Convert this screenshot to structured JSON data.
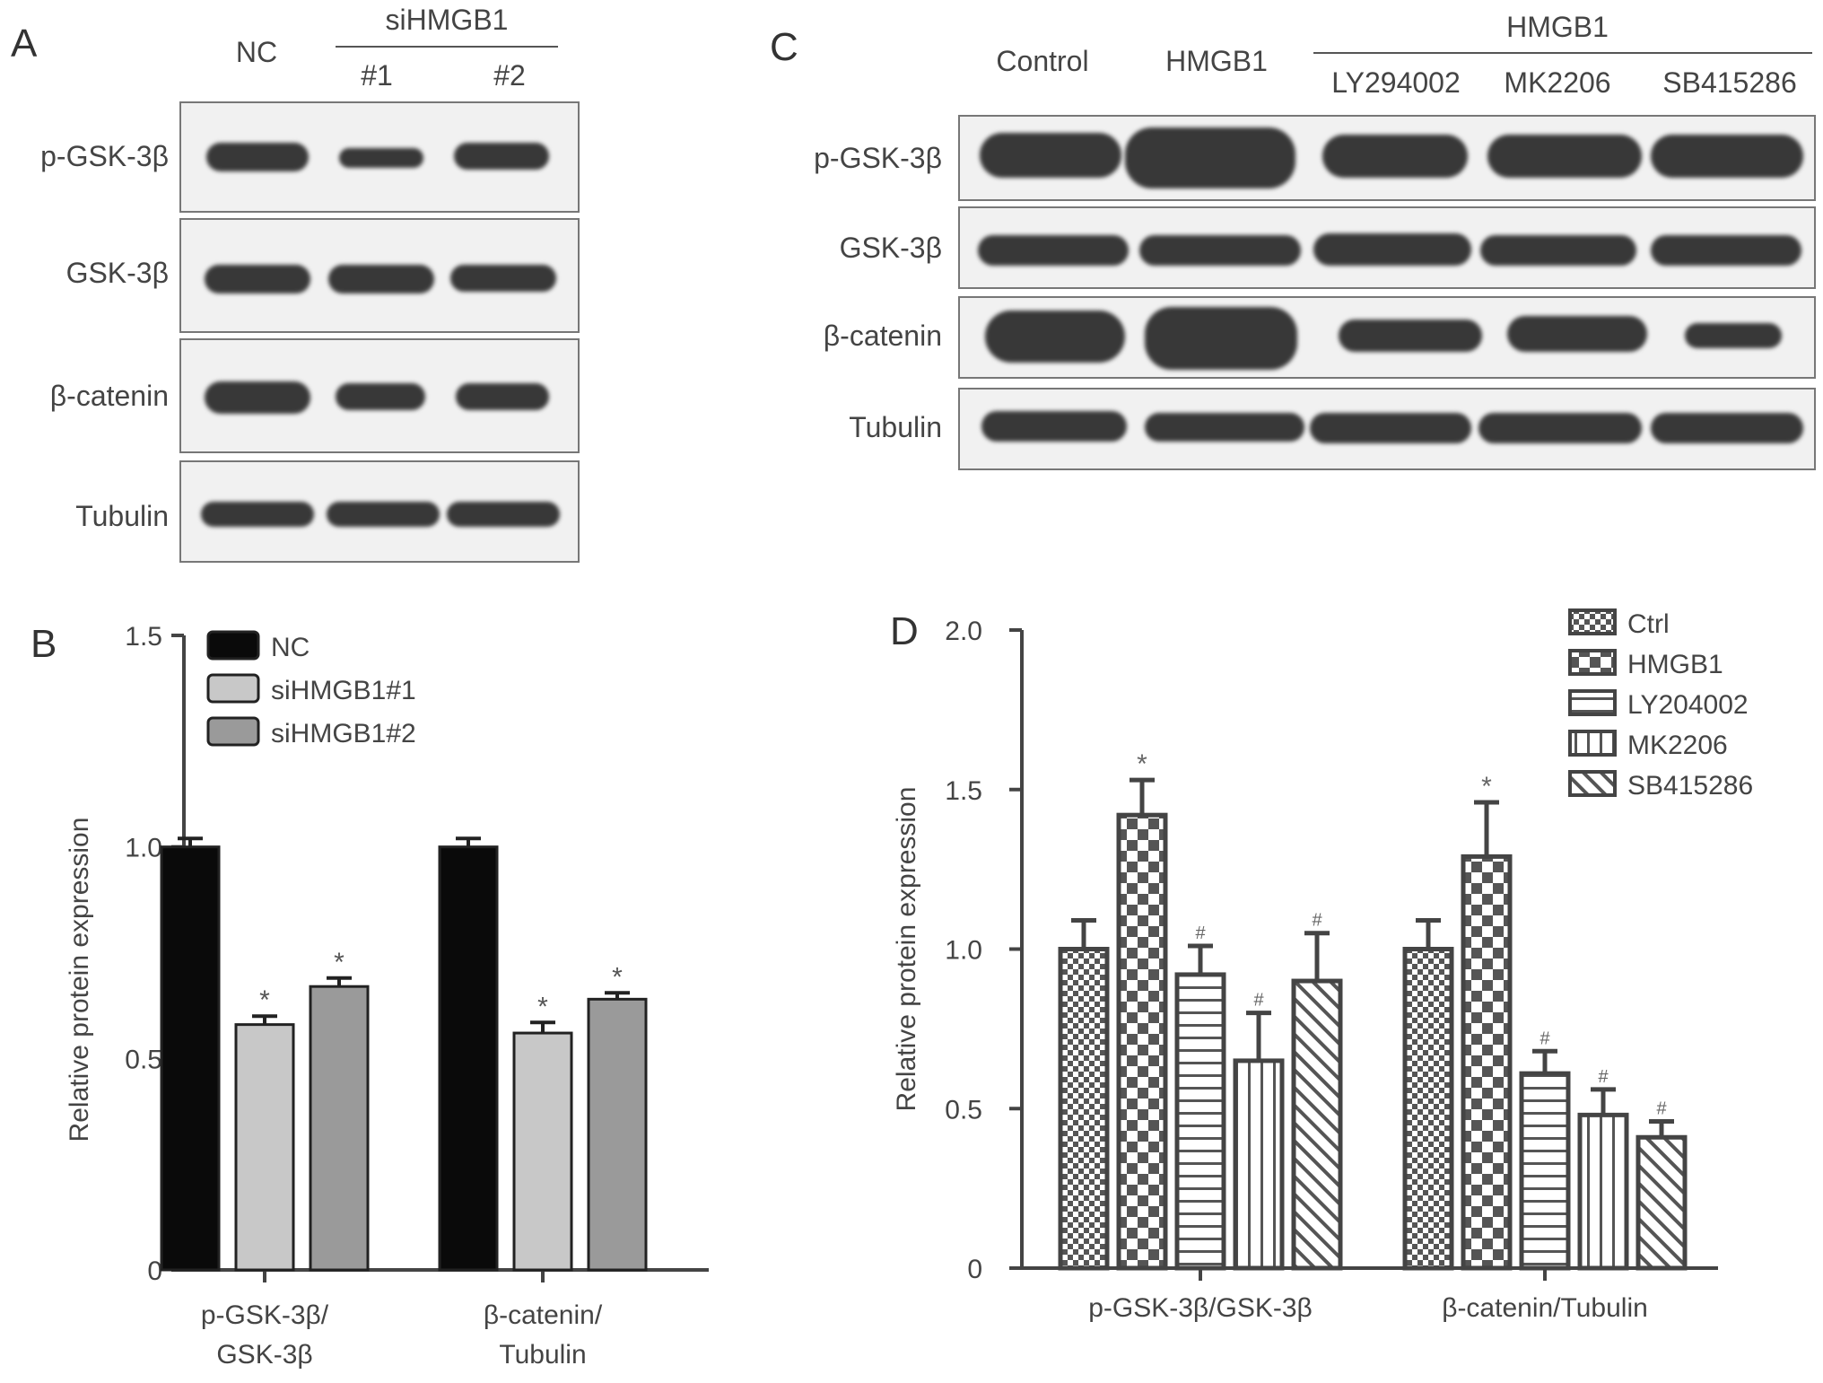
{
  "panel_a": {
    "letter": "A",
    "lanes": [
      "NC",
      "#1",
      "#2"
    ],
    "group_label": "siHMGB1",
    "rows": [
      "p-GSK-3β",
      "GSK-3β",
      "β-catenin",
      "Tubulin"
    ]
  },
  "panel_c": {
    "letter": "C",
    "lanes": [
      "Control",
      "HMGB1",
      "LY294002",
      "MK2206",
      "SB415286"
    ],
    "group_label": "HMGB1",
    "rows": [
      "p-GSK-3β",
      "GSK-3β",
      "β-catenin",
      "Tubulin"
    ]
  },
  "chart_data": [
    {
      "panel": "B",
      "type": "bar",
      "ylabel": "Relative protein expression",
      "ylim": [
        0,
        1.5
      ],
      "yticks": [
        "0",
        "0.5",
        "1.0",
        "1.5"
      ],
      "categories": [
        [
          "p-GSK-3β/",
          "GSK-3β"
        ],
        [
          "β-catenin/",
          "Tubulin"
        ]
      ],
      "legend_position": "top-left",
      "series": [
        {
          "name": "NC",
          "color": "#0a0a0a",
          "values": [
            1.0,
            1.0
          ],
          "errors": [
            0.02,
            0.02
          ],
          "marks": [
            "",
            ""
          ]
        },
        {
          "name": "siHMGB1#1",
          "color": "#c8c8c8",
          "values": [
            0.58,
            0.56
          ],
          "errors": [
            0.02,
            0.025
          ],
          "marks": [
            "*",
            "*"
          ]
        },
        {
          "name": "siHMGB1#2",
          "color": "#9a9a9a",
          "values": [
            0.67,
            0.64
          ],
          "errors": [
            0.02,
            0.015
          ],
          "marks": [
            "*",
            "*"
          ]
        }
      ]
    },
    {
      "panel": "D",
      "type": "bar",
      "ylabel": "Relative protein expression",
      "ylim": [
        0,
        2.0
      ],
      "yticks": [
        "0",
        "0.5",
        "1.0",
        "1.5",
        "2.0"
      ],
      "categories": [
        [
          "p-GSK-3β/GSK-3β"
        ],
        [
          "β-catenin/Tubulin"
        ]
      ],
      "legend_position": "top-right",
      "series": [
        {
          "name": "Ctrl",
          "pattern": "checker-fine",
          "values": [
            1.0,
            1.0
          ],
          "errors": [
            0.09,
            0.09
          ],
          "marks": [
            "",
            ""
          ]
        },
        {
          "name": "HMGB1",
          "pattern": "checker-coarse",
          "values": [
            1.42,
            1.29
          ],
          "errors": [
            0.11,
            0.17
          ],
          "marks": [
            "*",
            "*"
          ]
        },
        {
          "name": "LY204002",
          "pattern": "horizontal-lines",
          "values": [
            0.92,
            0.61
          ],
          "errors": [
            0.09,
            0.07
          ],
          "marks": [
            "#",
            "#"
          ]
        },
        {
          "name": "MK2206",
          "pattern": "vertical-lines",
          "values": [
            0.65,
            0.48
          ],
          "errors": [
            0.15,
            0.08
          ],
          "marks": [
            "#",
            "#"
          ]
        },
        {
          "name": "SB415286",
          "pattern": "diagonal-lines",
          "values": [
            0.9,
            0.41
          ],
          "errors": [
            0.15,
            0.05
          ],
          "marks": [
            "#",
            "#"
          ]
        }
      ]
    }
  ]
}
